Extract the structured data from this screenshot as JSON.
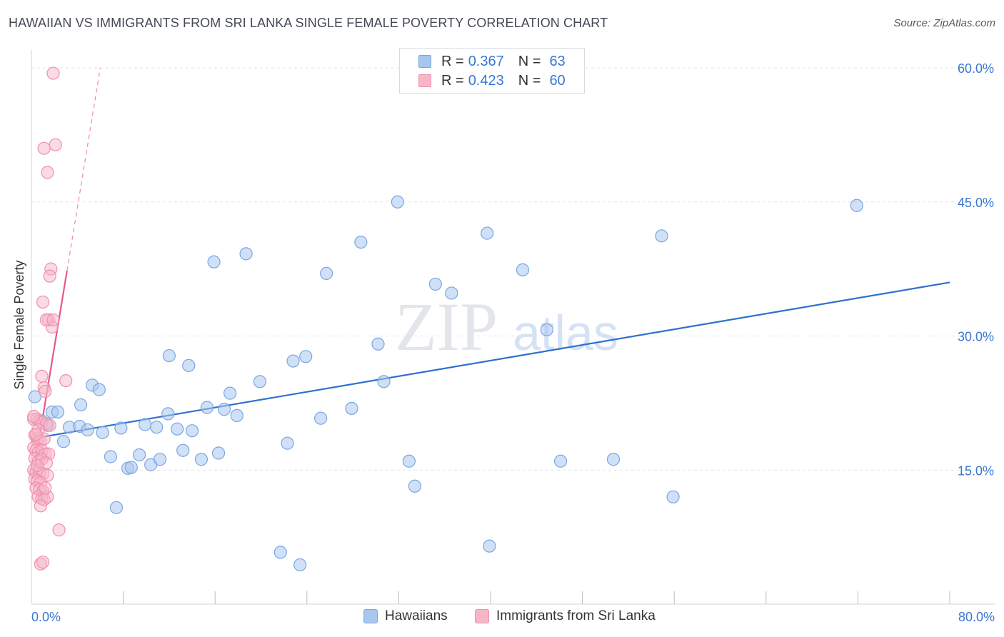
{
  "header": {
    "title": "HAWAIIAN VS IMMIGRANTS FROM SRI LANKA SINGLE FEMALE POVERTY CORRELATION CHART",
    "source": "Source: ZipAtlas.com"
  },
  "watermark": {
    "zip": "ZIP",
    "atlas": "atlas"
  },
  "legend_top": [
    {
      "r_label": "R =",
      "r_value": "0.367",
      "n_label": "N =",
      "n_value": "63"
    },
    {
      "r_label": "R =",
      "r_value": "0.423",
      "n_label": "N =",
      "n_value": "60"
    }
  ],
  "legend_bottom": [
    {
      "label": "Hawaiians"
    },
    {
      "label": "Immigrants from Sri Lanka"
    }
  ],
  "colors": {
    "blue_fill": "#a9c6ef",
    "blue_stroke": "#7aa6e3",
    "blue_line": "#2f6fd0",
    "pink_fill": "#f6b6c8",
    "pink_stroke": "#ef8fac",
    "pink_line": "#e8588a",
    "axis_text": "#3a77d1",
    "grid": "#dfe3e8"
  },
  "chart_data": {
    "type": "scatter",
    "title": "HAWAIIAN VS IMMIGRANTS FROM SRI LANKA SINGLE FEMALE POVERTY CORRELATION CHART",
    "ylabel": "Single Female Poverty",
    "xlim": [
      0,
      80
    ],
    "ylim": [
      0,
      62
    ],
    "x_tick_labels": [
      {
        "value": 0,
        "label": "0.0%"
      },
      {
        "value": 80,
        "label": "80.0%"
      }
    ],
    "y_tick_labels": [
      {
        "value": 15,
        "label": "15.0%"
      },
      {
        "value": 30,
        "label": "30.0%"
      },
      {
        "value": 45,
        "label": "45.0%"
      },
      {
        "value": 60,
        "label": "60.0%"
      }
    ],
    "x_minor_ticks": [
      8,
      16,
      24,
      32,
      40,
      48,
      56,
      64,
      72,
      80
    ],
    "grid": true,
    "legend_placement": "top-center",
    "series": [
      {
        "name": "Hawaiians",
        "r": 0.367,
        "n": 63,
        "trend": {
          "x0": 0,
          "y0": 18.5,
          "x1": 80,
          "y1": 36.0,
          "dashed_extension": false
        },
        "points": [
          [
            0.3,
            23.2
          ],
          [
            0.9,
            20.5
          ],
          [
            1.4,
            20.0
          ],
          [
            1.8,
            21.5
          ],
          [
            2.3,
            21.5
          ],
          [
            2.8,
            18.2
          ],
          [
            3.3,
            19.8
          ],
          [
            4.2,
            19.9
          ],
          [
            4.3,
            22.3
          ],
          [
            4.9,
            19.5
          ],
          [
            5.3,
            24.5
          ],
          [
            5.9,
            24.0
          ],
          [
            6.2,
            19.2
          ],
          [
            6.9,
            16.5
          ],
          [
            7.4,
            10.8
          ],
          [
            7.8,
            19.7
          ],
          [
            8.4,
            15.2
          ],
          [
            8.7,
            15.3
          ],
          [
            9.4,
            16.7
          ],
          [
            9.9,
            20.1
          ],
          [
            10.4,
            15.6
          ],
          [
            10.9,
            19.8
          ],
          [
            11.2,
            16.2
          ],
          [
            11.9,
            21.3
          ],
          [
            12.0,
            27.8
          ],
          [
            12.7,
            19.6
          ],
          [
            13.2,
            17.2
          ],
          [
            13.7,
            26.7
          ],
          [
            14.0,
            19.4
          ],
          [
            14.8,
            16.2
          ],
          [
            15.3,
            22.0
          ],
          [
            15.9,
            38.3
          ],
          [
            16.3,
            16.9
          ],
          [
            16.8,
            21.8
          ],
          [
            17.3,
            23.6
          ],
          [
            17.9,
            21.1
          ],
          [
            18.7,
            39.2
          ],
          [
            19.9,
            24.9
          ],
          [
            21.7,
            5.8
          ],
          [
            22.3,
            18.0
          ],
          [
            22.8,
            27.2
          ],
          [
            23.4,
            4.4
          ],
          [
            23.9,
            27.7
          ],
          [
            25.2,
            20.8
          ],
          [
            25.7,
            37.0
          ],
          [
            27.9,
            21.9
          ],
          [
            28.7,
            40.5
          ],
          [
            30.2,
            29.1
          ],
          [
            30.7,
            24.9
          ],
          [
            31.9,
            45.0
          ],
          [
            32.9,
            16.0
          ],
          [
            33.4,
            13.2
          ],
          [
            35.2,
            35.8
          ],
          [
            36.6,
            34.8
          ],
          [
            39.7,
            41.5
          ],
          [
            39.9,
            6.5
          ],
          [
            42.8,
            37.4
          ],
          [
            44.9,
            30.7
          ],
          [
            46.1,
            16.0
          ],
          [
            50.7,
            16.2
          ],
          [
            54.9,
            41.2
          ],
          [
            55.9,
            12.0
          ],
          [
            71.9,
            44.6
          ]
        ]
      },
      {
        "name": "Immigrants from Sri Lanka",
        "r": 0.423,
        "n": 60,
        "trend": {
          "x0": 0.1,
          "y0": 14.0,
          "x1": 3.1,
          "y1": 37.3,
          "dash_to_x": 6.0,
          "dash_to_y": 60.0
        },
        "points": [
          [
            1.9,
            59.4
          ],
          [
            1.1,
            51.0
          ],
          [
            2.1,
            51.4
          ],
          [
            1.4,
            48.3
          ],
          [
            1.7,
            37.5
          ],
          [
            1.6,
            36.7
          ],
          [
            1.0,
            33.8
          ],
          [
            1.5,
            31.8
          ],
          [
            1.8,
            31.0
          ],
          [
            1.3,
            31.8
          ],
          [
            1.9,
            31.8
          ],
          [
            0.9,
            25.5
          ],
          [
            3.0,
            25.0
          ],
          [
            1.1,
            24.2
          ],
          [
            1.2,
            23.8
          ],
          [
            0.2,
            20.7
          ],
          [
            0.5,
            20.7
          ],
          [
            0.7,
            20.5
          ],
          [
            0.9,
            20.3
          ],
          [
            1.3,
            20.2
          ],
          [
            0.3,
            18.9
          ],
          [
            0.5,
            18.5
          ],
          [
            0.6,
            18.2
          ],
          [
            0.8,
            18.3
          ],
          [
            1.1,
            18.5
          ],
          [
            0.2,
            17.5
          ],
          [
            0.4,
            17.2
          ],
          [
            0.6,
            17.0
          ],
          [
            0.9,
            17.2
          ],
          [
            1.2,
            16.8
          ],
          [
            1.5,
            16.8
          ],
          [
            0.3,
            16.3
          ],
          [
            0.6,
            16.0
          ],
          [
            0.9,
            16.2
          ],
          [
            1.3,
            15.8
          ],
          [
            0.2,
            15.0
          ],
          [
            0.4,
            14.8
          ],
          [
            0.7,
            14.6
          ],
          [
            1.0,
            14.6
          ],
          [
            1.4,
            14.4
          ],
          [
            0.3,
            14.0
          ],
          [
            0.5,
            13.8
          ],
          [
            0.8,
            13.6
          ],
          [
            0.4,
            13.0
          ],
          [
            0.7,
            12.8
          ],
          [
            1.0,
            12.6
          ],
          [
            0.6,
            12.0
          ],
          [
            0.9,
            11.8
          ],
          [
            1.1,
            11.7
          ],
          [
            1.4,
            12.0
          ],
          [
            0.8,
            11.0
          ],
          [
            2.4,
            8.3
          ],
          [
            0.8,
            4.5
          ],
          [
            1.0,
            4.7
          ],
          [
            0.2,
            21.0
          ],
          [
            0.6,
            19.5
          ],
          [
            1.6,
            20.0
          ],
          [
            0.4,
            19.0
          ],
          [
            1.2,
            13.0
          ],
          [
            0.5,
            15.5
          ]
        ]
      }
    ]
  }
}
